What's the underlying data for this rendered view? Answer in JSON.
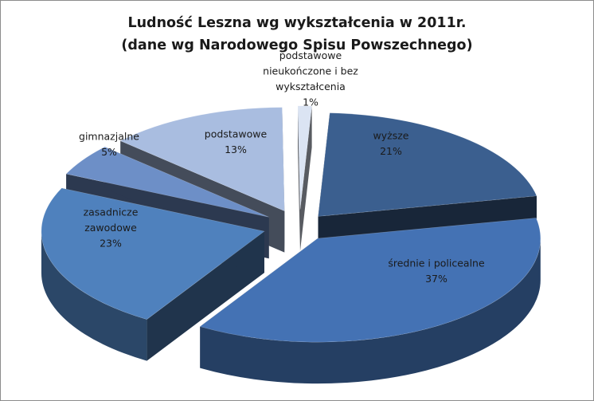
{
  "chart_data": {
    "type": "pie",
    "style": "3d-exploded",
    "title": "Ludność Leszna wg wykształcenia w 2011r.",
    "subtitle": "(dane wg Narodowego Spisu Powszechnego)",
    "slices": [
      {
        "label": "wyższe",
        "label_lines": [
          "wyższe"
        ],
        "value": 21,
        "value_label": "21%",
        "color": "#3b5f8f"
      },
      {
        "label": "średnie i policealne",
        "label_lines": [
          "średnie i policealne"
        ],
        "value": 37,
        "value_label": "37%",
        "color": "#4472b4"
      },
      {
        "label": "zasadnicze zawodowe",
        "label_lines": [
          "zasadnicze",
          "zawodowe"
        ],
        "value": 23,
        "value_label": "23%",
        "color": "#4f81bd"
      },
      {
        "label": "gimnazjalne",
        "label_lines": [
          "gimnazjalne"
        ],
        "value": 5,
        "value_label": "5%",
        "color": "#6d8fc7"
      },
      {
        "label": "podstawowe",
        "label_lines": [
          "podstawowe"
        ],
        "value": 13,
        "value_label": "13%",
        "color": "#a9bde0"
      },
      {
        "label": "podstawowe nieukończone i bez wykształcenia",
        "label_lines": [
          "podstawowe",
          "nieukończone i bez",
          "wykształcenia"
        ],
        "value": 1,
        "value_label": "1%",
        "color": "#dbe4f3"
      }
    ]
  }
}
